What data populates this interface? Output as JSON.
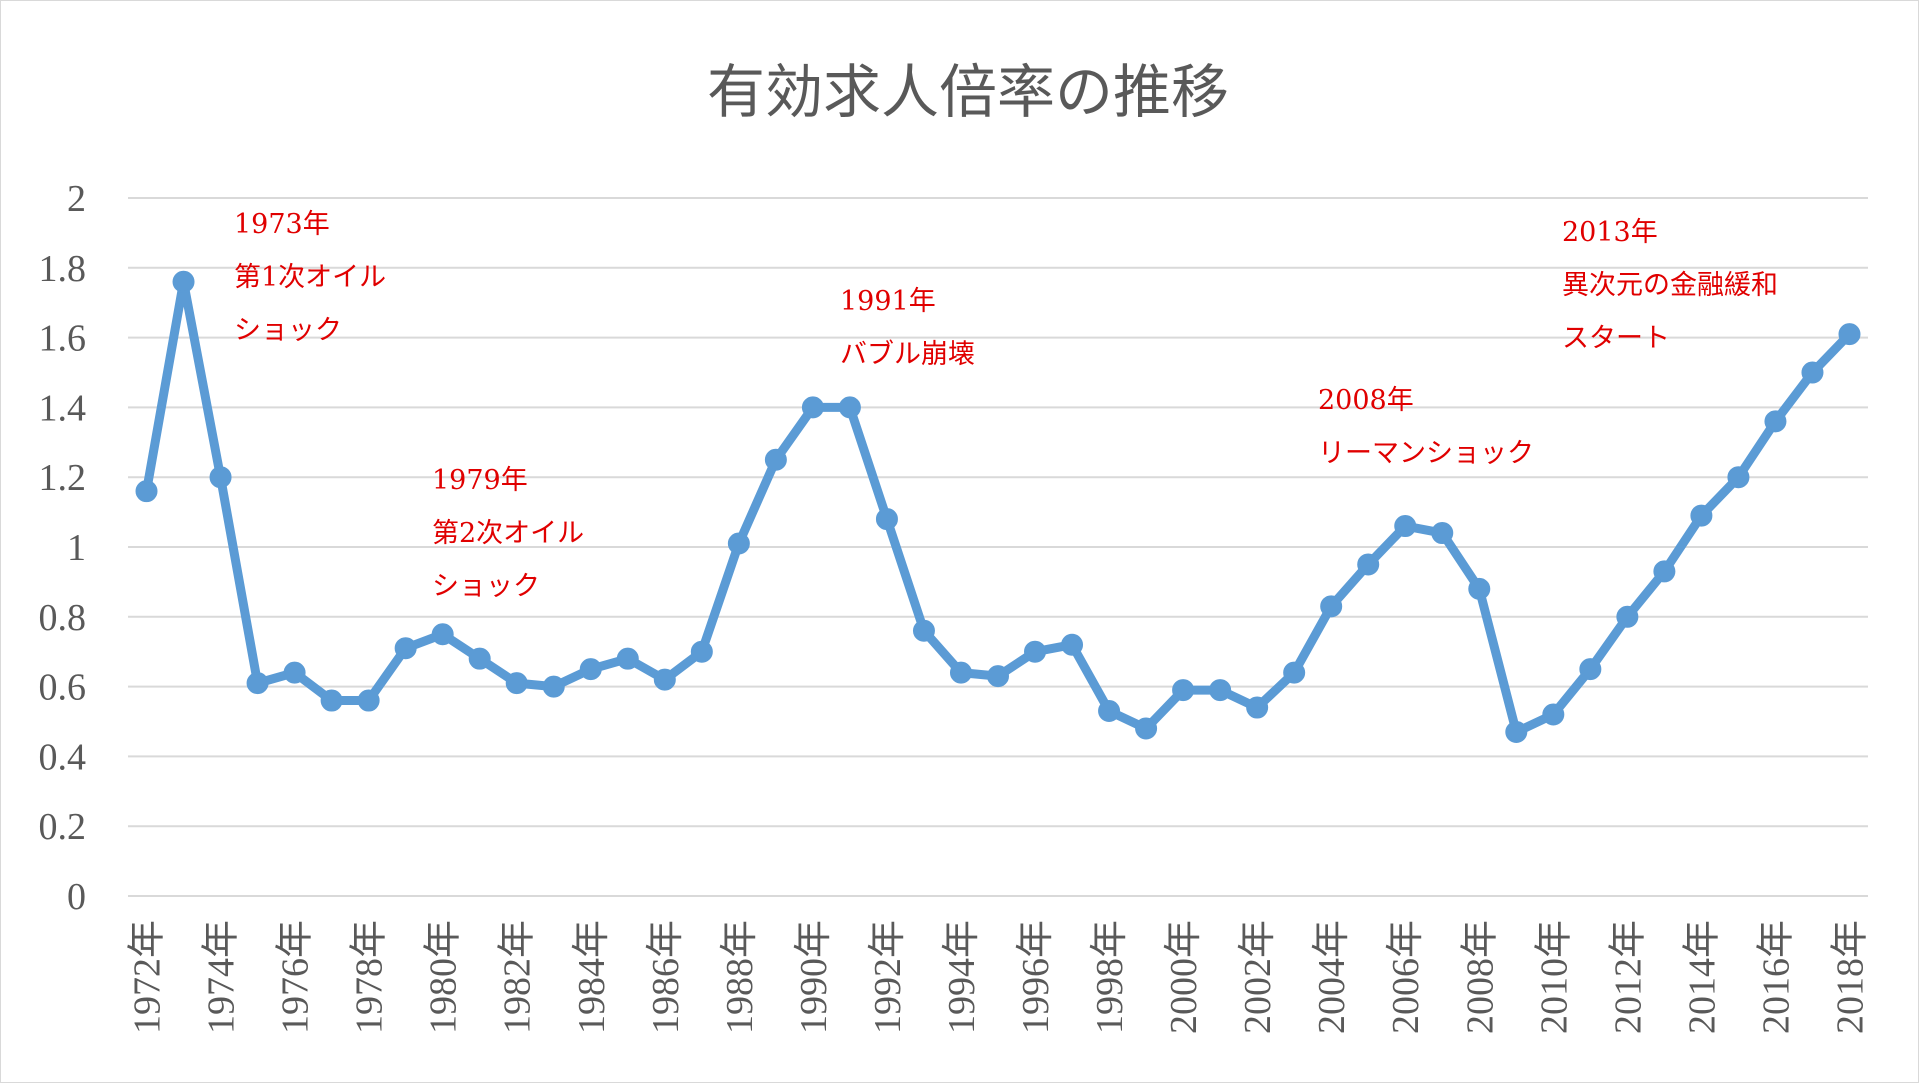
{
  "chart_data": {
    "type": "line",
    "title": "有効求人倍率の推移",
    "xlabel": "",
    "ylabel": "",
    "ylim": [
      0,
      2
    ],
    "y_ticks": [
      "0",
      "0.2",
      "0.4",
      "0.6",
      "0.8",
      "1",
      "1.2",
      "1.4",
      "1.6",
      "1.8",
      "2"
    ],
    "grid": true,
    "legend": "none",
    "x": [
      "1972年",
      "1973年",
      "1974年",
      "1975年",
      "1976年",
      "1977年",
      "1978年",
      "1979年",
      "1980年",
      "1981年",
      "1982年",
      "1983年",
      "1984年",
      "1985年",
      "1986年",
      "1987年",
      "1988年",
      "1989年",
      "1990年",
      "1991年",
      "1992年",
      "1993年",
      "1994年",
      "1995年",
      "1996年",
      "1997年",
      "1998年",
      "1999年",
      "2000年",
      "2001年",
      "2002年",
      "2003年",
      "2004年",
      "2005年",
      "2006年",
      "2007年",
      "2008年",
      "2009年",
      "2010年",
      "2011年",
      "2012年",
      "2013年",
      "2014年",
      "2015年",
      "2016年",
      "2017年",
      "2018年"
    ],
    "x_tick_labels": [
      "1972年",
      "1974年",
      "1976年",
      "1978年",
      "1980年",
      "1982年",
      "1984年",
      "1986年",
      "1988年",
      "1990年",
      "1992年",
      "1994年",
      "1996年",
      "1998年",
      "2000年",
      "2002年",
      "2004年",
      "2006年",
      "2008年",
      "2010年",
      "2012年",
      "2014年",
      "2016年",
      "2018年"
    ],
    "series": [
      {
        "color": "#5b9bd5",
        "values": [
          1.16,
          1.76,
          1.2,
          0.61,
          0.64,
          0.56,
          0.56,
          0.71,
          0.75,
          0.68,
          0.61,
          0.6,
          0.65,
          0.68,
          0.62,
          0.7,
          1.01,
          1.25,
          1.4,
          1.4,
          1.08,
          0.76,
          0.64,
          0.63,
          0.7,
          0.72,
          0.53,
          0.48,
          0.59,
          0.59,
          0.54,
          0.64,
          0.83,
          0.95,
          1.06,
          1.04,
          0.88,
          0.47,
          0.52,
          0.65,
          0.8,
          0.93,
          1.09,
          1.2,
          1.36,
          1.5,
          1.61
        ]
      }
    ],
    "annotations": [
      {
        "lines": [
          "1973年",
          "第1次オイル",
          "ショック"
        ],
        "color": "#e00000"
      },
      {
        "lines": [
          "1979年",
          "第2次オイル",
          "ショック"
        ],
        "color": "#e00000"
      },
      {
        "lines": [
          "1991年",
          "バブル崩壊"
        ],
        "color": "#e00000"
      },
      {
        "lines": [
          "2008年",
          "リーマンショック"
        ],
        "color": "#e00000"
      },
      {
        "lines": [
          "2013年",
          "異次元の金融緩和",
          "スタート"
        ],
        "color": "#e00000"
      }
    ]
  }
}
